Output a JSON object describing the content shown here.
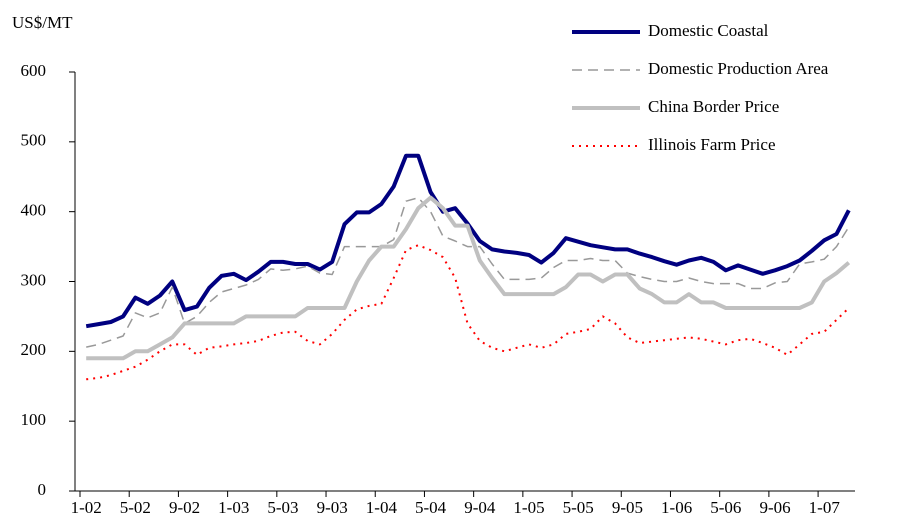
{
  "chart_data": {
    "type": "line",
    "y_label": "US$/MT",
    "categories": [
      "1-02",
      null,
      null,
      null,
      "5-02",
      null,
      null,
      null,
      "9-02",
      null,
      null,
      null,
      "1-03",
      null,
      null,
      null,
      "5-03",
      null,
      null,
      null,
      "9-03",
      null,
      null,
      null,
      "1-04",
      null,
      null,
      null,
      "5-04",
      null,
      null,
      null,
      "9-04",
      null,
      null,
      null,
      "1-05",
      null,
      null,
      null,
      "5-05",
      null,
      null,
      null,
      "9-05",
      null,
      null,
      null,
      "1-06",
      null,
      null,
      null,
      "5-06",
      null,
      null,
      null,
      "9-06",
      null,
      null,
      null,
      "1-07",
      null,
      null
    ],
    "series": [
      {
        "name": "Domestic Coastal",
        "color": "#000080",
        "style": "solid",
        "values": [
          236,
          239,
          242,
          250,
          277,
          268,
          280,
          300,
          259,
          264,
          291,
          308,
          311,
          302,
          314,
          328,
          328,
          325,
          325,
          317,
          328,
          382,
          399,
          399,
          411,
          436,
          480,
          480,
          428,
          400,
          405,
          383,
          358,
          346,
          343,
          341,
          338,
          327,
          341,
          362,
          357,
          352,
          349,
          346,
          346,
          340,
          335,
          329,
          324,
          330,
          334,
          328,
          316,
          323,
          317,
          311,
          316,
          322,
          330,
          344,
          359,
          368,
          402
        ]
      },
      {
        "name": "Domestic Production Area",
        "color": "#999999",
        "style": "dashed",
        "values": [
          206,
          210,
          216,
          222,
          255,
          248,
          255,
          292,
          240,
          250,
          270,
          285,
          290,
          295,
          303,
          318,
          316,
          318,
          322,
          312,
          310,
          350,
          350,
          350,
          350,
          360,
          415,
          420,
          400,
          365,
          358,
          350,
          350,
          325,
          303,
          303,
          303,
          305,
          320,
          330,
          330,
          333,
          330,
          330,
          312,
          307,
          303,
          300,
          300,
          305,
          300,
          297,
          297,
          297,
          290,
          290,
          298,
          300,
          325,
          328,
          332,
          350,
          378
        ]
      },
      {
        "name": "China Border Price",
        "color": "#c0c0c0",
        "style": "solid",
        "values": [
          190,
          190,
          190,
          190,
          200,
          200,
          210,
          220,
          240,
          240,
          240,
          240,
          240,
          250,
          250,
          250,
          250,
          250,
          262,
          262,
          262,
          262,
          300,
          330,
          350,
          350,
          375,
          405,
          420,
          405,
          380,
          380,
          330,
          305,
          282,
          282,
          282,
          282,
          282,
          292,
          310,
          310,
          300,
          310,
          310,
          290,
          282,
          270,
          270,
          282,
          270,
          270,
          262,
          262,
          262,
          262,
          262,
          262,
          262,
          270,
          300,
          312,
          327
        ]
      },
      {
        "name": "Illinois Farm Price",
        "color": "#ff0000",
        "style": "dotted",
        "values": [
          160,
          162,
          166,
          172,
          178,
          188,
          200,
          210,
          210,
          195,
          205,
          207,
          210,
          212,
          215,
          222,
          227,
          228,
          215,
          210,
          225,
          245,
          260,
          265,
          268,
          305,
          345,
          352,
          345,
          335,
          305,
          240,
          215,
          205,
          200,
          205,
          210,
          205,
          210,
          225,
          228,
          232,
          250,
          240,
          220,
          212,
          214,
          216,
          218,
          220,
          218,
          214,
          210,
          216,
          218,
          212,
          205,
          195,
          210,
          225,
          228,
          245,
          262
        ]
      }
    ],
    "ylim": [
      0,
      600
    ],
    "yticks": [
      0,
      100,
      200,
      300,
      400,
      500,
      600
    ],
    "grid": false,
    "legend": "top-right"
  }
}
